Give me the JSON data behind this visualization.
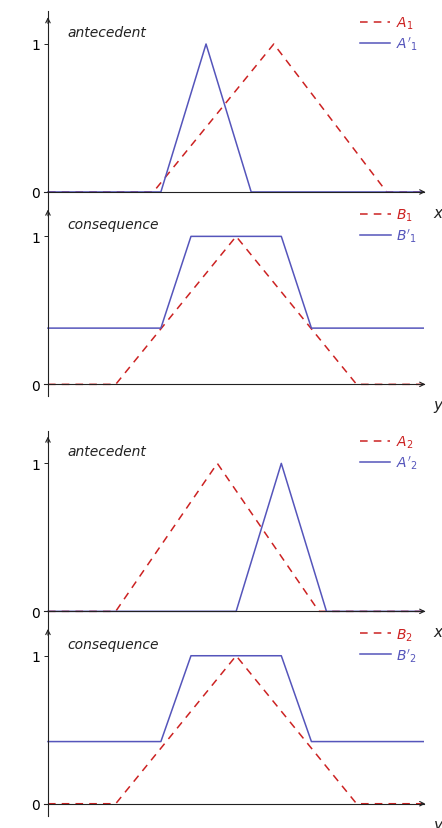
{
  "bg_color": "#ffffff",
  "panels": [
    {
      "title": "antecedent",
      "xlabel": "x",
      "curves": [
        {
          "label_base": "A",
          "subscript": "1",
          "prime": false,
          "color": "#cc2222",
          "linestyle": "dashed",
          "points_x": [
            0.0,
            0.28,
            0.6,
            0.9,
            1.0
          ],
          "points_y": [
            0.0,
            0.0,
            1.0,
            0.0,
            0.0
          ]
        },
        {
          "label_base": "A",
          "subscript": "1",
          "prime": true,
          "color": "#5555bb",
          "linestyle": "solid",
          "points_x": [
            0.0,
            0.3,
            0.42,
            0.54,
            1.0
          ],
          "points_y": [
            0.0,
            0.0,
            1.0,
            0.0,
            0.0
          ]
        }
      ]
    },
    {
      "title": "consequence",
      "xlabel": "y",
      "curves": [
        {
          "label_base": "B",
          "subscript": "1",
          "prime": false,
          "color": "#cc2222",
          "linestyle": "dashed",
          "points_x": [
            0.0,
            0.18,
            0.5,
            0.82,
            1.0
          ],
          "points_y": [
            0.0,
            0.0,
            1.0,
            0.0,
            0.0
          ]
        },
        {
          "label_base": "B",
          "subscript": "1",
          "prime": true,
          "color": "#5555bb",
          "linestyle": "solid",
          "points_x": [
            0.0,
            0.3,
            0.38,
            0.62,
            0.7,
            1.0
          ],
          "points_y": [
            0.38,
            0.38,
            1.0,
            1.0,
            0.38,
            0.38
          ]
        }
      ]
    },
    {
      "title": "antecedent",
      "xlabel": "x",
      "curves": [
        {
          "label_base": "A",
          "subscript": "2",
          "prime": false,
          "color": "#cc2222",
          "linestyle": "dashed",
          "points_x": [
            0.0,
            0.18,
            0.45,
            0.72,
            1.0
          ],
          "points_y": [
            0.0,
            0.0,
            1.0,
            0.0,
            0.0
          ]
        },
        {
          "label_base": "A",
          "subscript": "2",
          "prime": true,
          "color": "#5555bb",
          "linestyle": "solid",
          "points_x": [
            0.0,
            0.5,
            0.62,
            0.74,
            1.0
          ],
          "points_y": [
            0.0,
            0.0,
            1.0,
            0.0,
            0.0
          ]
        }
      ]
    },
    {
      "title": "consequence",
      "xlabel": "y",
      "curves": [
        {
          "label_base": "B",
          "subscript": "2",
          "prime": false,
          "color": "#cc2222",
          "linestyle": "dashed",
          "points_x": [
            0.0,
            0.18,
            0.5,
            0.82,
            1.0
          ],
          "points_y": [
            0.0,
            0.0,
            1.0,
            0.0,
            0.0
          ]
        },
        {
          "label_base": "B",
          "subscript": "2",
          "prime": true,
          "color": "#5555bb",
          "linestyle": "solid",
          "points_x": [
            0.0,
            0.3,
            0.38,
            0.62,
            0.7,
            1.0
          ],
          "points_y": [
            0.42,
            0.42,
            1.0,
            1.0,
            0.42,
            0.42
          ]
        }
      ]
    }
  ]
}
